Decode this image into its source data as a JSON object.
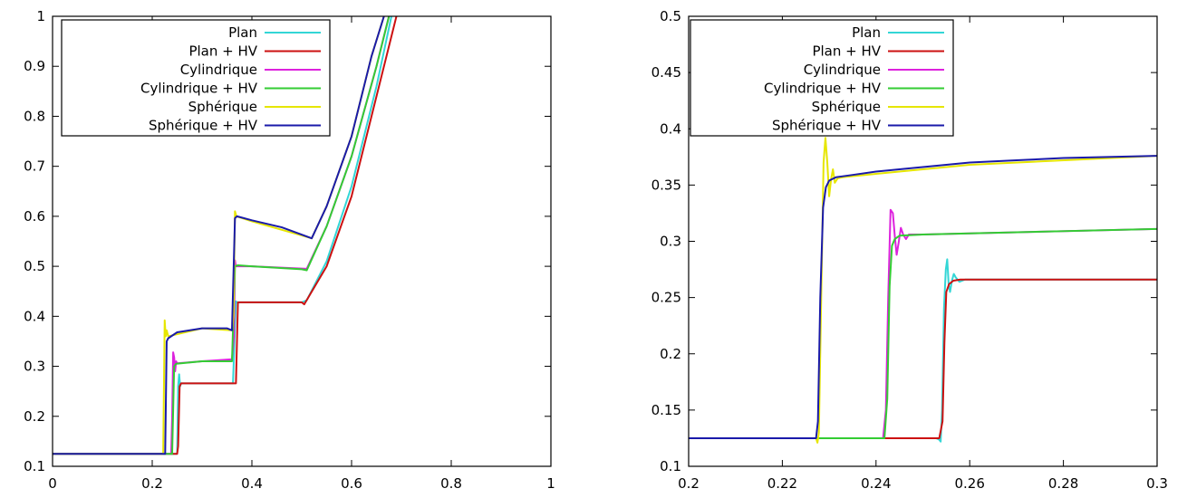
{
  "chart_data": [
    {
      "type": "line",
      "title": "",
      "xlabel": "",
      "ylabel": "",
      "xlim": [
        0,
        1
      ],
      "ylim": [
        0.1,
        1
      ],
      "xticks": [
        "0",
        "0.2",
        "0.4",
        "0.6",
        "0.8",
        "1"
      ],
      "yticks": [
        "0.1",
        "0.2",
        "0.3",
        "0.4",
        "0.5",
        "0.6",
        "0.7",
        "0.8",
        "0.9",
        "1"
      ],
      "grid": false,
      "legend_position": "top-left",
      "series": [
        {
          "name": "Plan",
          "color": "#33d6d6",
          "points": [
            [
              0,
              0.125
            ],
            [
              0.236,
              0.125
            ],
            [
              0.25,
              0.125
            ],
            [
              0.252,
              0.26
            ],
            [
              0.254,
              0.284
            ],
            [
              0.256,
              0.26
            ],
            [
              0.258,
              0.266
            ],
            [
              0.35,
              0.266
            ],
            [
              0.362,
              0.266
            ],
            [
              0.368,
              0.43
            ],
            [
              0.37,
              0.428
            ],
            [
              0.38,
              0.428
            ],
            [
              0.5,
              0.428
            ],
            [
              0.51,
              0.432
            ],
            [
              0.55,
              0.51
            ],
            [
              0.6,
              0.66
            ],
            [
              0.65,
              0.86
            ],
            [
              0.68,
              1.0
            ]
          ]
        },
        {
          "name": "Plan + HV",
          "color": "#cc1111",
          "points": [
            [
              0,
              0.125
            ],
            [
              0.25,
              0.125
            ],
            [
              0.252,
              0.14
            ],
            [
              0.255,
              0.26
            ],
            [
              0.258,
              0.266
            ],
            [
              0.36,
              0.266
            ],
            [
              0.368,
              0.266
            ],
            [
              0.372,
              0.428
            ],
            [
              0.38,
              0.428
            ],
            [
              0.5,
              0.428
            ],
            [
              0.505,
              0.424
            ],
            [
              0.55,
              0.5
            ],
            [
              0.6,
              0.64
            ],
            [
              0.65,
              0.84
            ],
            [
              0.69,
              1.0
            ]
          ]
        },
        {
          "name": "Cylindrique",
          "color": "#dd22dd",
          "points": [
            [
              0,
              0.125
            ],
            [
              0.238,
              0.125
            ],
            [
              0.24,
              0.2
            ],
            [
              0.242,
              0.328
            ],
            [
              0.244,
              0.318
            ],
            [
              0.246,
              0.29
            ],
            [
              0.248,
              0.31
            ],
            [
              0.25,
              0.306
            ],
            [
              0.3,
              0.31
            ],
            [
              0.36,
              0.314
            ],
            [
              0.364,
              0.36
            ],
            [
              0.366,
              0.512
            ],
            [
              0.368,
              0.5
            ],
            [
              0.4,
              0.5
            ],
            [
              0.51,
              0.495
            ],
            [
              0.55,
              0.58
            ],
            [
              0.6,
              0.72
            ],
            [
              0.65,
              0.9
            ],
            [
              0.675,
              1.0
            ]
          ]
        },
        {
          "name": "Cylindrique + HV",
          "color": "#33cc33",
          "points": [
            [
              0,
              0.125
            ],
            [
              0.24,
              0.125
            ],
            [
              0.244,
              0.3
            ],
            [
              0.248,
              0.305
            ],
            [
              0.3,
              0.31
            ],
            [
              0.36,
              0.31
            ],
            [
              0.366,
              0.5
            ],
            [
              0.372,
              0.502
            ],
            [
              0.4,
              0.5
            ],
            [
              0.5,
              0.494
            ],
            [
              0.51,
              0.492
            ],
            [
              0.55,
              0.58
            ],
            [
              0.6,
              0.72
            ],
            [
              0.65,
              0.9
            ],
            [
              0.675,
              1.0
            ]
          ]
        },
        {
          "name": "Sphérique",
          "color": "#e6e600",
          "points": [
            [
              0,
              0.125
            ],
            [
              0.222,
              0.125
            ],
            [
              0.225,
              0.392
            ],
            [
              0.227,
              0.36
            ],
            [
              0.229,
              0.372
            ],
            [
              0.232,
              0.36
            ],
            [
              0.3,
              0.376
            ],
            [
              0.36,
              0.372
            ],
            [
              0.363,
              0.4
            ],
            [
              0.366,
              0.61
            ],
            [
              0.369,
              0.6
            ],
            [
              0.4,
              0.59
            ],
            [
              0.52,
              0.556
            ],
            [
              0.55,
              0.62
            ],
            [
              0.6,
              0.76
            ],
            [
              0.64,
              0.92
            ],
            [
              0.665,
              1.0
            ]
          ]
        },
        {
          "name": "Sphérique + HV",
          "color": "#1a1aaa",
          "points": [
            [
              0,
              0.125
            ],
            [
              0.226,
              0.125
            ],
            [
              0.229,
              0.35
            ],
            [
              0.232,
              0.356
            ],
            [
              0.25,
              0.368
            ],
            [
              0.3,
              0.376
            ],
            [
              0.35,
              0.376
            ],
            [
              0.36,
              0.372
            ],
            [
              0.364,
              0.52
            ],
            [
              0.366,
              0.596
            ],
            [
              0.37,
              0.6
            ],
            [
              0.4,
              0.592
            ],
            [
              0.46,
              0.578
            ],
            [
              0.52,
              0.556
            ],
            [
              0.55,
              0.62
            ],
            [
              0.6,
              0.76
            ],
            [
              0.64,
              0.92
            ],
            [
              0.665,
              1.0
            ]
          ]
        }
      ]
    },
    {
      "type": "line",
      "title": "",
      "xlabel": "",
      "ylabel": "",
      "xlim": [
        0.2,
        0.3
      ],
      "ylim": [
        0.1,
        0.5
      ],
      "xticks": [
        "0.2",
        "0.22",
        "0.24",
        "0.26",
        "0.28",
        "0.3"
      ],
      "yticks": [
        "0.1",
        "0.15",
        "0.2",
        "0.25",
        "0.3",
        "0.35",
        "0.4",
        "0.45",
        "0.5"
      ],
      "grid": false,
      "legend_position": "top-left",
      "series": [
        {
          "name": "Plan",
          "color": "#33d6d6",
          "points": [
            [
              0.2,
              0.125
            ],
            [
              0.2528,
              0.125
            ],
            [
              0.2534,
              0.124
            ],
            [
              0.2538,
              0.122
            ],
            [
              0.2541,
              0.15
            ],
            [
              0.2545,
              0.24
            ],
            [
              0.2549,
              0.275
            ],
            [
              0.2552,
              0.284
            ],
            [
              0.2555,
              0.262
            ],
            [
              0.2558,
              0.255
            ],
            [
              0.2562,
              0.265
            ],
            [
              0.2566,
              0.271
            ],
            [
              0.257,
              0.268
            ],
            [
              0.2578,
              0.264
            ],
            [
              0.259,
              0.266
            ],
            [
              0.3,
              0.266
            ]
          ]
        },
        {
          "name": "Plan + HV",
          "color": "#cc1111",
          "points": [
            [
              0.2,
              0.125
            ],
            [
              0.2535,
              0.125
            ],
            [
              0.2542,
              0.14
            ],
            [
              0.2546,
              0.21
            ],
            [
              0.255,
              0.255
            ],
            [
              0.2556,
              0.262
            ],
            [
              0.2565,
              0.265
            ],
            [
              0.258,
              0.266
            ],
            [
              0.3,
              0.266
            ]
          ]
        },
        {
          "name": "Cylindrique",
          "color": "#dd22dd",
          "points": [
            [
              0.2,
              0.125
            ],
            [
              0.2415,
              0.125
            ],
            [
              0.2421,
              0.15
            ],
            [
              0.2426,
              0.25
            ],
            [
              0.2431,
              0.328
            ],
            [
              0.2436,
              0.325
            ],
            [
              0.244,
              0.305
            ],
            [
              0.2444,
              0.288
            ],
            [
              0.2448,
              0.298
            ],
            [
              0.2453,
              0.312
            ],
            [
              0.2458,
              0.306
            ],
            [
              0.2464,
              0.302
            ],
            [
              0.247,
              0.306
            ],
            [
              0.25,
              0.306
            ],
            [
              0.3,
              0.311
            ]
          ]
        },
        {
          "name": "Cylindrique + HV",
          "color": "#33cc33",
          "points": [
            [
              0.2,
              0.125
            ],
            [
              0.2418,
              0.125
            ],
            [
              0.2424,
              0.16
            ],
            [
              0.2429,
              0.26
            ],
            [
              0.2434,
              0.296
            ],
            [
              0.244,
              0.302
            ],
            [
              0.245,
              0.305
            ],
            [
              0.25,
              0.306
            ],
            [
              0.3,
              0.311
            ]
          ]
        },
        {
          "name": "Sphérique",
          "color": "#e6e600",
          "points": [
            [
              0.2,
              0.125
            ],
            [
              0.2272,
              0.125
            ],
            [
              0.2275,
              0.121
            ],
            [
              0.2278,
              0.13
            ],
            [
              0.2283,
              0.25
            ],
            [
              0.2288,
              0.37
            ],
            [
              0.2292,
              0.392
            ],
            [
              0.2296,
              0.37
            ],
            [
              0.23,
              0.34
            ],
            [
              0.2304,
              0.355
            ],
            [
              0.2308,
              0.364
            ],
            [
              0.2312,
              0.352
            ],
            [
              0.2318,
              0.356
            ],
            [
              0.233,
              0.357
            ],
            [
              0.24,
              0.36
            ],
            [
              0.26,
              0.368
            ],
            [
              0.3,
              0.376
            ]
          ]
        },
        {
          "name": "Sphérique + HV",
          "color": "#1a1aaa",
          "points": [
            [
              0.2,
              0.125
            ],
            [
              0.2272,
              0.125
            ],
            [
              0.2276,
              0.14
            ],
            [
              0.2281,
              0.25
            ],
            [
              0.2287,
              0.33
            ],
            [
              0.2293,
              0.348
            ],
            [
              0.23,
              0.354
            ],
            [
              0.2315,
              0.357
            ],
            [
              0.235,
              0.359
            ],
            [
              0.24,
              0.362
            ],
            [
              0.25,
              0.366
            ],
            [
              0.26,
              0.37
            ],
            [
              0.27,
              0.372
            ],
            [
              0.28,
              0.374
            ],
            [
              0.3,
              0.376
            ]
          ]
        }
      ]
    }
  ]
}
